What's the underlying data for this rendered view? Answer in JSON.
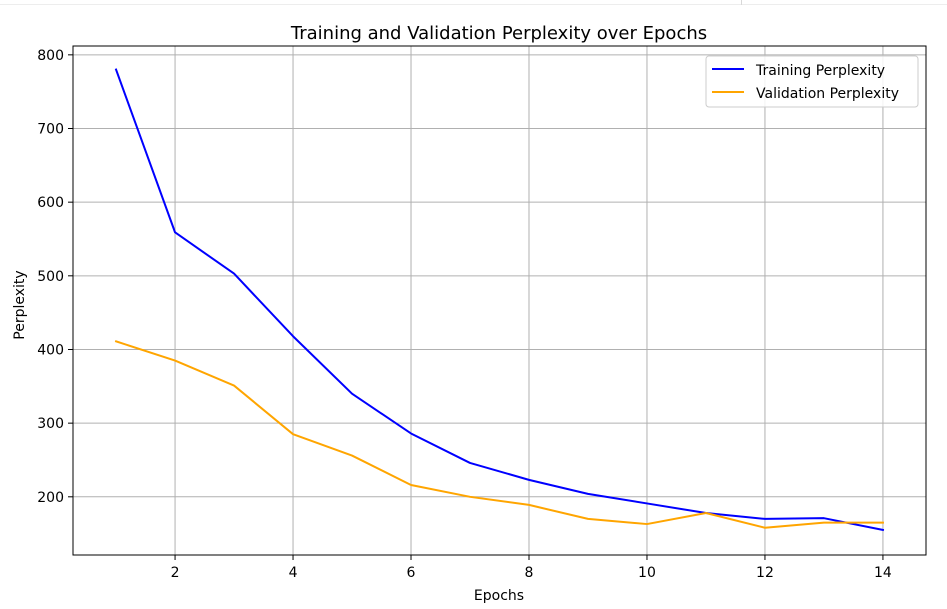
{
  "chart_data": {
    "type": "line",
    "title": "Training and Validation Perplexity over Epochs",
    "xlabel": "Epochs",
    "ylabel": "Perplexity",
    "x": [
      1,
      2,
      3,
      4,
      5,
      6,
      7,
      8,
      9,
      10,
      11,
      12,
      13,
      14
    ],
    "xlim": [
      0.27,
      14.73
    ],
    "ylim": [
      121,
      812
    ],
    "xticks": [
      2,
      4,
      6,
      8,
      10,
      12,
      14
    ],
    "yticks": [
      200,
      300,
      400,
      500,
      600,
      700,
      800
    ],
    "grid": true,
    "legend_position": "top-right",
    "series": [
      {
        "name": "Training Perplexity",
        "color": "#0000ff",
        "values": [
          780,
          559,
          503,
          418,
          340,
          286,
          246,
          223,
          204,
          191,
          178,
          170,
          171,
          155
        ]
      },
      {
        "name": "Validation Perplexity",
        "color": "#ffa500",
        "values": [
          411,
          385,
          351,
          285,
          256,
          216,
          200,
          189,
          170,
          163,
          178,
          158,
          165,
          165
        ]
      }
    ]
  }
}
